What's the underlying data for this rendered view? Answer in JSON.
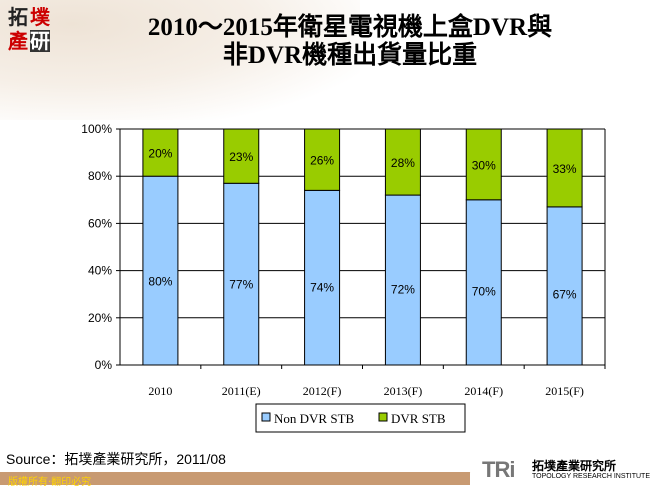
{
  "logo": {
    "chars": [
      "拓",
      "墣",
      "產",
      "研"
    ]
  },
  "title_line1": "2010～2015年衛星電視機上盒DVR與",
  "title_line2": "非DVR機種出貨量比重",
  "chart_data": {
    "type": "bar",
    "stacked": true,
    "categories": [
      "2010",
      "2011(E)",
      "2012(F)",
      "2013(F)",
      "2014(F)",
      "2015(F)"
    ],
    "series": [
      {
        "name": "Non DVR STB",
        "values": [
          80,
          77,
          74,
          72,
          70,
          67
        ],
        "color": "#99ccff"
      },
      {
        "name": "DVR STB",
        "values": [
          20,
          23,
          26,
          28,
          30,
          33
        ],
        "color": "#99cc00"
      }
    ],
    "yticks": [
      "0%",
      "20%",
      "40%",
      "60%",
      "80%",
      "100%"
    ],
    "ylim": [
      0,
      100
    ],
    "grid": true,
    "legend": "bottom"
  },
  "source": "Source：拓墣產業研究所，2011/08",
  "footer": "版權所有‧翻印必究",
  "brand": {
    "mark": "TRi",
    "name_zh": "拓墣產業研究所",
    "name_en": "TOPOLOGY RESEARCH INSTITUTE"
  }
}
